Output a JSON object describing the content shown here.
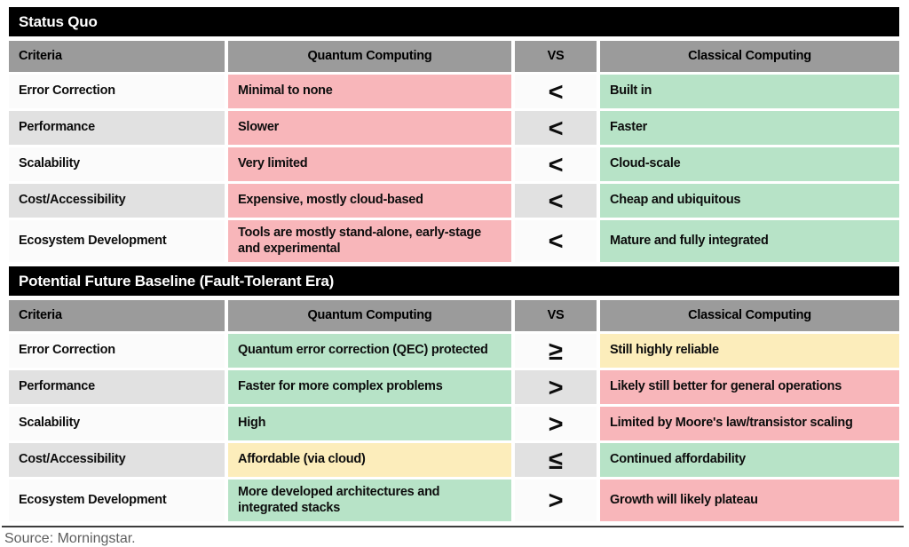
{
  "theme": {
    "section_header_bg": "#000000",
    "section_header_text": "#ffffff",
    "column_header_bg": "#9b9b9b",
    "column_header_text": "#000000",
    "row_light": "#fbfbfb",
    "row_dark": "#e1e1e1",
    "negative": "#f8b6ba",
    "positive": "#b7e3c7",
    "neutral": "#fcedbb",
    "rule_color": "#3d3d3d",
    "source_text_color": "#5e5e5e"
  },
  "columns": [
    {
      "label": "Criteria",
      "align": "left"
    },
    {
      "label": "Quantum Computing",
      "align": "center"
    },
    {
      "label": "VS",
      "align": "center"
    },
    {
      "label": "Classical Computing",
      "align": "center"
    }
  ],
  "sections": [
    {
      "title": "Status Quo",
      "rows": [
        {
          "criteria": "Error Correction",
          "quantum": "Minimal to none",
          "quantum_tone": "negative",
          "symbol": "<",
          "classical": "Built in",
          "classical_tone": "positive"
        },
        {
          "criteria": "Performance",
          "quantum": "Slower",
          "quantum_tone": "negative",
          "symbol": "<",
          "classical": "Faster",
          "classical_tone": "positive"
        },
        {
          "criteria": "Scalability",
          "quantum": "Very limited",
          "quantum_tone": "negative",
          "symbol": "<",
          "classical": "Cloud-scale",
          "classical_tone": "positive"
        },
        {
          "criteria": "Cost/Accessibility",
          "quantum": "Expensive, mostly cloud-based",
          "quantum_tone": "negative",
          "symbol": "<",
          "classical": "Cheap and ubiquitous",
          "classical_tone": "positive"
        },
        {
          "criteria": "Ecosystem Development",
          "quantum": "Tools are mostly stand-alone, early-stage and experimental",
          "quantum_tone": "negative",
          "symbol": "<",
          "classical": "Mature and fully integrated",
          "classical_tone": "positive"
        }
      ]
    },
    {
      "title": "Potential Future Baseline (Fault-Tolerant Era)",
      "rows": [
        {
          "criteria": "Error Correction",
          "quantum": "Quantum error correction (QEC) protected",
          "quantum_tone": "positive",
          "symbol": "≥",
          "classical": "Still highly reliable",
          "classical_tone": "neutral"
        },
        {
          "criteria": "Performance",
          "quantum": "Faster for more complex problems",
          "quantum_tone": "positive",
          "symbol": ">",
          "classical": "Likely still better for general operations",
          "classical_tone": "negative"
        },
        {
          "criteria": "Scalability",
          "quantum": "High",
          "quantum_tone": "positive",
          "symbol": ">",
          "classical": "Limited by Moore's law/transistor scaling",
          "classical_tone": "negative"
        },
        {
          "criteria": "Cost/Accessibility",
          "quantum": "Affordable (via cloud)",
          "quantum_tone": "neutral",
          "symbol": "≤",
          "classical": "Continued affordability",
          "classical_tone": "positive"
        },
        {
          "criteria": "Ecosystem Development",
          "quantum": "More developed architectures and integrated stacks",
          "quantum_tone": "positive",
          "symbol": ">",
          "classical": "Growth will likely plateau",
          "classical_tone": "negative"
        }
      ]
    }
  ],
  "footer": {
    "source": "Source: Morningstar."
  },
  "chart_data": [
    {
      "type": "table",
      "title": "Status Quo",
      "columns": [
        "Criteria",
        "Quantum Computing",
        "VS",
        "Classical Computing"
      ],
      "rows": [
        [
          "Error Correction",
          "Minimal to none",
          "<",
          "Built in"
        ],
        [
          "Performance",
          "Slower",
          "<",
          "Faster"
        ],
        [
          "Scalability",
          "Very limited",
          "<",
          "Cloud-scale"
        ],
        [
          "Cost/Accessibility",
          "Expensive, mostly cloud-based",
          "<",
          "Cheap and ubiquitous"
        ],
        [
          "Ecosystem Development",
          "Tools are mostly stand-alone, early-stage and experimental",
          "<",
          "Mature and fully integrated"
        ]
      ],
      "cell_tones": {
        "quantum_column": [
          "negative",
          "negative",
          "negative",
          "negative",
          "negative"
        ],
        "classical_column": [
          "positive",
          "positive",
          "positive",
          "positive",
          "positive"
        ]
      }
    },
    {
      "type": "table",
      "title": "Potential Future Baseline (Fault-Tolerant Era)",
      "columns": [
        "Criteria",
        "Quantum Computing",
        "VS",
        "Classical Computing"
      ],
      "rows": [
        [
          "Error Correction",
          "Quantum error correction (QEC) protected",
          "≥",
          "Still highly reliable"
        ],
        [
          "Performance",
          "Faster for more complex problems",
          ">",
          "Likely still better for general operations"
        ],
        [
          "Scalability",
          "High",
          ">",
          "Limited by Moore's law/transistor scaling"
        ],
        [
          "Cost/Accessibility",
          "Affordable (via cloud)",
          "≤",
          "Continued affordability"
        ],
        [
          "Ecosystem Development",
          "More developed architectures and integrated stacks",
          ">",
          "Growth will likely plateau"
        ]
      ],
      "cell_tones": {
        "quantum_column": [
          "positive",
          "positive",
          "positive",
          "neutral",
          "positive"
        ],
        "classical_column": [
          "neutral",
          "negative",
          "negative",
          "positive",
          "negative"
        ]
      }
    }
  ]
}
